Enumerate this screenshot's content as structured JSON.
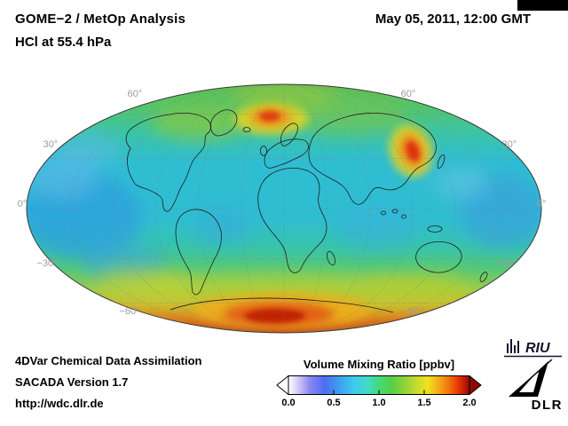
{
  "header": {
    "title_line1": "GOME−2 / MetOp Analysis",
    "title_line2": "HCl at 55.4 hPa",
    "datetime": "May 05, 2011, 12:00 GMT"
  },
  "map": {
    "lat_labels_left": [
      "60°",
      "30°",
      "0°",
      "−30°",
      "−60°"
    ],
    "lat_labels_right": [
      "60°",
      "30°",
      "0°",
      "−30°",
      "−60°"
    ],
    "high_value_regions": [
      "northern Europe / Scandinavia",
      "northeast Asia (Korea / Japan region)",
      "Antarctica / southern high latitudes"
    ],
    "low_value_regions": [
      "tropical and mid-latitude oceans (cyan / blue patches)"
    ]
  },
  "colorbar": {
    "title": "Volume Mixing Ratio [ppbv]",
    "ticks": [
      "0.0",
      "0.5",
      "1.0",
      "1.5",
      "2.0"
    ],
    "min": 0.0,
    "max": 2.0,
    "units": "ppbv",
    "arrow_left_color": "#ffffff",
    "arrow_right_color": "#8c0a04",
    "gradient": [
      {
        "at": 0,
        "color": "#ffffff"
      },
      {
        "at": 5,
        "color": "#d8ccf6"
      },
      {
        "at": 12,
        "color": "#8a86f0"
      },
      {
        "at": 20,
        "color": "#4c6ef0"
      },
      {
        "at": 28,
        "color": "#3f9ff0"
      },
      {
        "at": 36,
        "color": "#3fc9ee"
      },
      {
        "at": 44,
        "color": "#3fdcc4"
      },
      {
        "at": 50,
        "color": "#47d87b"
      },
      {
        "at": 57,
        "color": "#55cf47"
      },
      {
        "at": 64,
        "color": "#8ed23a"
      },
      {
        "at": 71,
        "color": "#c9dc2e"
      },
      {
        "at": 77,
        "color": "#f1e11e"
      },
      {
        "at": 83,
        "color": "#f5a919"
      },
      {
        "at": 89,
        "color": "#f0700f"
      },
      {
        "at": 94,
        "color": "#e63407"
      },
      {
        "at": 98,
        "color": "#b71404"
      },
      {
        "at": 100,
        "color": "#8c0a04"
      }
    ]
  },
  "footer": {
    "line1": "4DVar Chemical Data Assimilation",
    "line2": "SACADA Version 1.7",
    "line3": "http://wdc.dlr.de"
  },
  "logos": {
    "riu_text": "RIU",
    "dlr_text": "DLR"
  }
}
